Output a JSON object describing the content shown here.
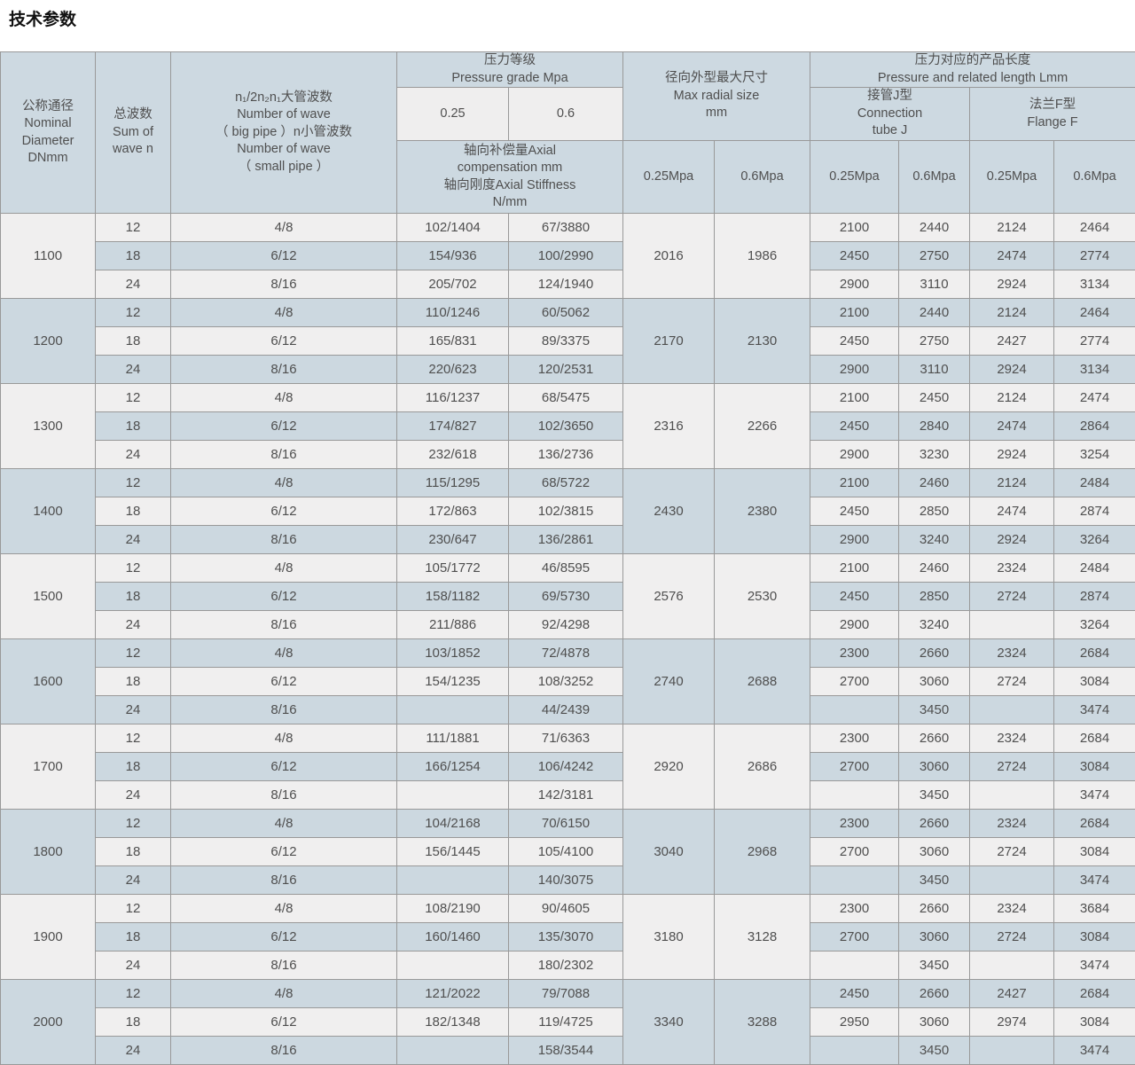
{
  "page_title": "技术参数",
  "table": {
    "headers": {
      "nominal_diameter": "公称通径\nNominal\nDiameter\nDNmm",
      "sum_of_wave": "总波数\nSum of\nwave n",
      "wave_number": "n₁/2n₂n₁大管波数\nNumber of wave\n（ big pipe ）n小管波数\nNumber of wave\n（ small pipe ）",
      "pressure_grade": "压力等级\nPressure grade Mpa",
      "pressure_025": "0.25",
      "pressure_06": "0.6",
      "axial": "轴向补偿量Axial\ncompensation mm\n轴向刚度Axial Stiffness\nN/mm",
      "max_radial": "径向外型最大尺寸\nMax radial size\nmm",
      "length_group": "压力对应的产品长度\nPressure and related length Lmm",
      "connection_j": "接管J型\nConnection\ntube J",
      "flange_f": "法兰F型\nFlange F",
      "mpa_025": "0.25Mpa",
      "mpa_06": "0.6Mpa"
    },
    "groups": [
      {
        "dn": "1100",
        "radial_025": "2016",
        "radial_06": "1986",
        "rows": [
          {
            "n": "12",
            "waves": "4/8",
            "axial_025": "102/1404",
            "axial_06": "67/3880",
            "j_025": "2100",
            "j_06": "2440",
            "f_025": "2124",
            "f_06": "2464"
          },
          {
            "n": "18",
            "waves": "6/12",
            "axial_025": "154/936",
            "axial_06": "100/2990",
            "j_025": "2450",
            "j_06": "2750",
            "f_025": "2474",
            "f_06": "2774"
          },
          {
            "n": "24",
            "waves": "8/16",
            "axial_025": "205/702",
            "axial_06": "124/1940",
            "j_025": "2900",
            "j_06": "3110",
            "f_025": "2924",
            "f_06": "3134"
          }
        ]
      },
      {
        "dn": "1200",
        "radial_025": "2170",
        "radial_06": "2130",
        "rows": [
          {
            "n": "12",
            "waves": "4/8",
            "axial_025": "110/1246",
            "axial_06": "60/5062",
            "j_025": "2100",
            "j_06": "2440",
            "f_025": "2124",
            "f_06": "2464"
          },
          {
            "n": "18",
            "waves": "6/12",
            "axial_025": "165/831",
            "axial_06": "89/3375",
            "j_025": "2450",
            "j_06": "2750",
            "f_025": "2427",
            "f_06": "2774"
          },
          {
            "n": "24",
            "waves": "8/16",
            "axial_025": "220/623",
            "axial_06": "120/2531",
            "j_025": "2900",
            "j_06": "3110",
            "f_025": "2924",
            "f_06": "3134"
          }
        ]
      },
      {
        "dn": "1300",
        "radial_025": "2316",
        "radial_06": "2266",
        "rows": [
          {
            "n": "12",
            "waves": "4/8",
            "axial_025": "116/1237",
            "axial_06": "68/5475",
            "j_025": "2100",
            "j_06": "2450",
            "f_025": "2124",
            "f_06": "2474"
          },
          {
            "n": "18",
            "waves": "6/12",
            "axial_025": "174/827",
            "axial_06": "102/3650",
            "j_025": "2450",
            "j_06": "2840",
            "f_025": "2474",
            "f_06": "2864"
          },
          {
            "n": "24",
            "waves": "8/16",
            "axial_025": "232/618",
            "axial_06": "136/2736",
            "j_025": "2900",
            "j_06": "3230",
            "f_025": "2924",
            "f_06": "3254"
          }
        ]
      },
      {
        "dn": "1400",
        "radial_025": "2430",
        "radial_06": "2380",
        "rows": [
          {
            "n": "12",
            "waves": "4/8",
            "axial_025": "115/1295",
            "axial_06": "68/5722",
            "j_025": "2100",
            "j_06": "2460",
            "f_025": "2124",
            "f_06": "2484"
          },
          {
            "n": "18",
            "waves": "6/12",
            "axial_025": "172/863",
            "axial_06": "102/3815",
            "j_025": "2450",
            "j_06": "2850",
            "f_025": "2474",
            "f_06": "2874"
          },
          {
            "n": "24",
            "waves": "8/16",
            "axial_025": "230/647",
            "axial_06": "136/2861",
            "j_025": "2900",
            "j_06": "3240",
            "f_025": "2924",
            "f_06": "3264"
          }
        ]
      },
      {
        "dn": "1500",
        "radial_025": "2576",
        "radial_06": "2530",
        "rows": [
          {
            "n": "12",
            "waves": "4/8",
            "axial_025": "105/1772",
            "axial_06": "46/8595",
            "j_025": "2100",
            "j_06": "2460",
            "f_025": "2324",
            "f_06": "2484"
          },
          {
            "n": "18",
            "waves": "6/12",
            "axial_025": "158/1182",
            "axial_06": "69/5730",
            "j_025": "2450",
            "j_06": "2850",
            "f_025": "2724",
            "f_06": "2874"
          },
          {
            "n": "24",
            "waves": "8/16",
            "axial_025": "211/886",
            "axial_06": "92/4298",
            "j_025": "2900",
            "j_06": "3240",
            "f_025": "",
            "f_06": "3264"
          }
        ]
      },
      {
        "dn": "1600",
        "radial_025": "2740",
        "radial_06": "2688",
        "rows": [
          {
            "n": "12",
            "waves": "4/8",
            "axial_025": "103/1852",
            "axial_06": "72/4878",
            "j_025": "2300",
            "j_06": "2660",
            "f_025": "2324",
            "f_06": "2684"
          },
          {
            "n": "18",
            "waves": "6/12",
            "axial_025": "154/1235",
            "axial_06": "108/3252",
            "j_025": "2700",
            "j_06": "3060",
            "f_025": "2724",
            "f_06": "3084"
          },
          {
            "n": "24",
            "waves": "8/16",
            "axial_025": "",
            "axial_06": "44/2439",
            "j_025": "",
            "j_06": "3450",
            "f_025": "",
            "f_06": "3474"
          }
        ]
      },
      {
        "dn": "1700",
        "radial_025": "2920",
        "radial_06": "2686",
        "rows": [
          {
            "n": "12",
            "waves": "4/8",
            "axial_025": "111/1881",
            "axial_06": "71/6363",
            "j_025": "2300",
            "j_06": "2660",
            "f_025": "2324",
            "f_06": "2684"
          },
          {
            "n": "18",
            "waves": "6/12",
            "axial_025": "166/1254",
            "axial_06": "106/4242",
            "j_025": "2700",
            "j_06": "3060",
            "f_025": "2724",
            "f_06": "3084"
          },
          {
            "n": "24",
            "waves": "8/16",
            "axial_025": "",
            "axial_06": "142/3181",
            "j_025": "",
            "j_06": "3450",
            "f_025": "",
            "f_06": "3474"
          }
        ]
      },
      {
        "dn": "1800",
        "radial_025": "3040",
        "radial_06": "2968",
        "rows": [
          {
            "n": "12",
            "waves": "4/8",
            "axial_025": "104/2168",
            "axial_06": "70/6150",
            "j_025": "2300",
            "j_06": "2660",
            "f_025": "2324",
            "f_06": "2684"
          },
          {
            "n": "18",
            "waves": "6/12",
            "axial_025": "156/1445",
            "axial_06": "105/4100",
            "j_025": "2700",
            "j_06": "3060",
            "f_025": "2724",
            "f_06": "3084"
          },
          {
            "n": "24",
            "waves": "8/16",
            "axial_025": "",
            "axial_06": "140/3075",
            "j_025": "",
            "j_06": "3450",
            "f_025": "",
            "f_06": "3474"
          }
        ]
      },
      {
        "dn": "1900",
        "radial_025": "3180",
        "radial_06": "3128",
        "rows": [
          {
            "n": "12",
            "waves": "4/8",
            "axial_025": "108/2190",
            "axial_06": "90/4605",
            "j_025": "2300",
            "j_06": "2660",
            "f_025": "2324",
            "f_06": "3684"
          },
          {
            "n": "18",
            "waves": "6/12",
            "axial_025": "160/1460",
            "axial_06": "135/3070",
            "j_025": "2700",
            "j_06": "3060",
            "f_025": "2724",
            "f_06": "3084"
          },
          {
            "n": "24",
            "waves": "8/16",
            "axial_025": "",
            "axial_06": "180/2302",
            "j_025": "",
            "j_06": "3450",
            "f_025": "",
            "f_06": "3474"
          }
        ]
      },
      {
        "dn": "2000",
        "radial_025": "3340",
        "radial_06": "3288",
        "rows": [
          {
            "n": "12",
            "waves": "4/8",
            "axial_025": "121/2022",
            "axial_06": "79/7088",
            "j_025": "2450",
            "j_06": "2660",
            "f_025": "2427",
            "f_06": "2684"
          },
          {
            "n": "18",
            "waves": "6/12",
            "axial_025": "182/1348",
            "axial_06": "119/4725",
            "j_025": "2950",
            "j_06": "3060",
            "f_025": "2974",
            "f_06": "3084"
          },
          {
            "n": "24",
            "waves": "8/16",
            "axial_025": "",
            "axial_06": "158/3544",
            "j_025": "",
            "j_06": "3450",
            "f_025": "",
            "f_06": "3474"
          }
        ]
      }
    ]
  },
  "colors": {
    "header_bg": "#cdd9e1",
    "row_light": "#f0efef",
    "row_blue": "#ccd8e0",
    "header_light_cell": "#efeeee",
    "border": "#999999",
    "text": "#4f4f4f",
    "title": "#111111"
  }
}
